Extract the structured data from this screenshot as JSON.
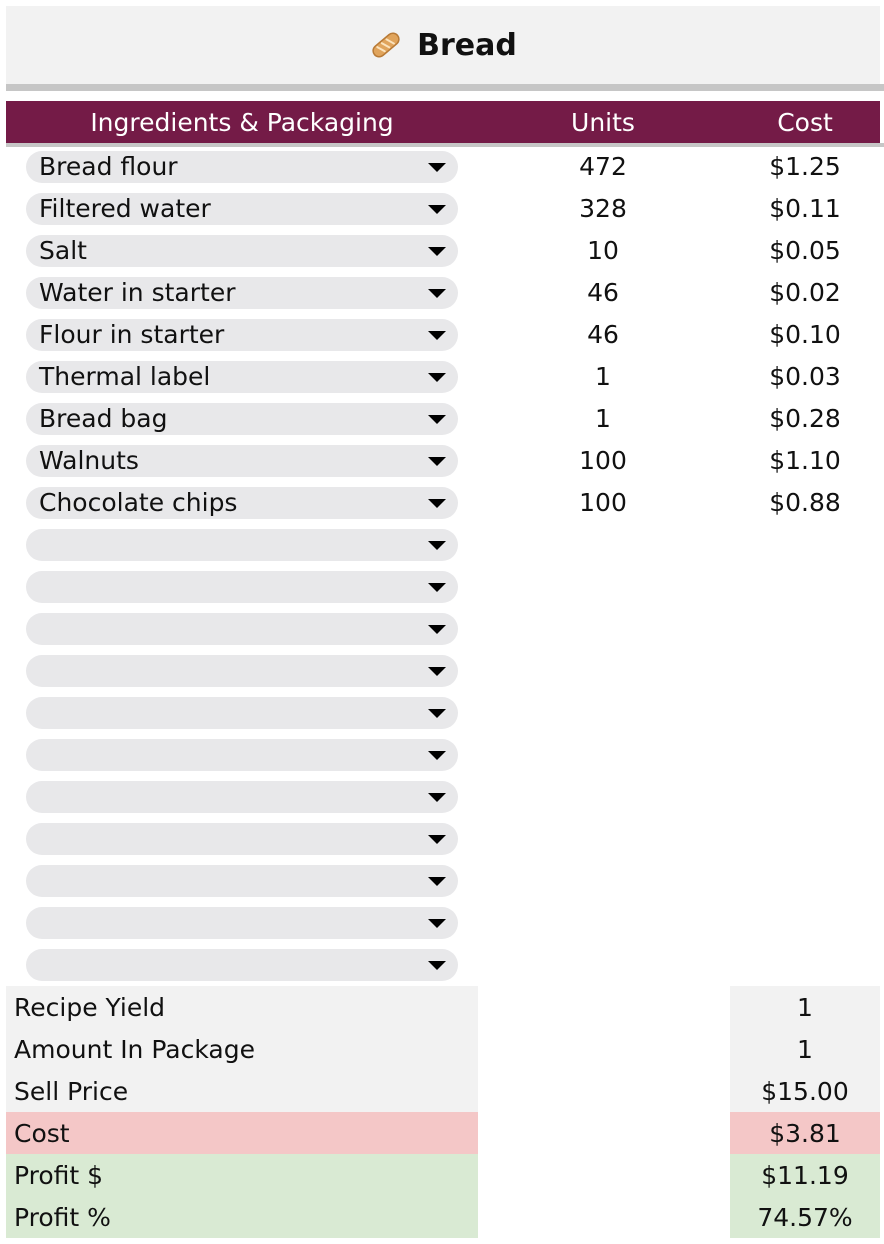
{
  "title": {
    "icon": "baguette-icon",
    "text": "Bread"
  },
  "table": {
    "headers": {
      "ingredients": "Ingredients & Packaging",
      "units": "Units",
      "cost": "Cost"
    },
    "rows": [
      {
        "item": "Bread flour",
        "units": "472",
        "cost": "$1.25"
      },
      {
        "item": "Filtered water",
        "units": "328",
        "cost": "$0.11"
      },
      {
        "item": "Salt",
        "units": "10",
        "cost": "$0.05"
      },
      {
        "item": "Water in starter",
        "units": "46",
        "cost": "$0.02"
      },
      {
        "item": "Flour in starter",
        "units": "46",
        "cost": "$0.10"
      },
      {
        "item": "Thermal label",
        "units": "1",
        "cost": "$0.03"
      },
      {
        "item": "Bread bag",
        "units": "1",
        "cost": "$0.28"
      },
      {
        "item": "Walnuts",
        "units": "100",
        "cost": "$1.10"
      },
      {
        "item": "Chocolate chips",
        "units": "100",
        "cost": "$0.88"
      },
      {
        "item": "",
        "units": "",
        "cost": ""
      },
      {
        "item": "",
        "units": "",
        "cost": ""
      },
      {
        "item": "",
        "units": "",
        "cost": ""
      },
      {
        "item": "",
        "units": "",
        "cost": ""
      },
      {
        "item": "",
        "units": "",
        "cost": ""
      },
      {
        "item": "",
        "units": "",
        "cost": ""
      },
      {
        "item": "",
        "units": "",
        "cost": ""
      },
      {
        "item": "",
        "units": "",
        "cost": ""
      },
      {
        "item": "",
        "units": "",
        "cost": ""
      },
      {
        "item": "",
        "units": "",
        "cost": ""
      },
      {
        "item": "",
        "units": "",
        "cost": ""
      }
    ]
  },
  "summary": {
    "recipe_yield": {
      "label": "Recipe Yield",
      "value": "1"
    },
    "amount_in_package": {
      "label": "Amount In Package",
      "value": "1"
    },
    "sell_price": {
      "label": "Sell Price",
      "value": "$15.00"
    },
    "cost": {
      "label": "Cost",
      "value": "$3.81"
    },
    "profit_dollar": {
      "label": "Profit $",
      "value": "$11.19"
    },
    "profit_percent": {
      "label": "Profit %",
      "value": "74.57%"
    }
  },
  "colors": {
    "header_bg": "#741b47",
    "cost_highlight": "#f4c7c7",
    "profit_highlight": "#d9ead3",
    "chip_bg": "#e8e8ea"
  }
}
